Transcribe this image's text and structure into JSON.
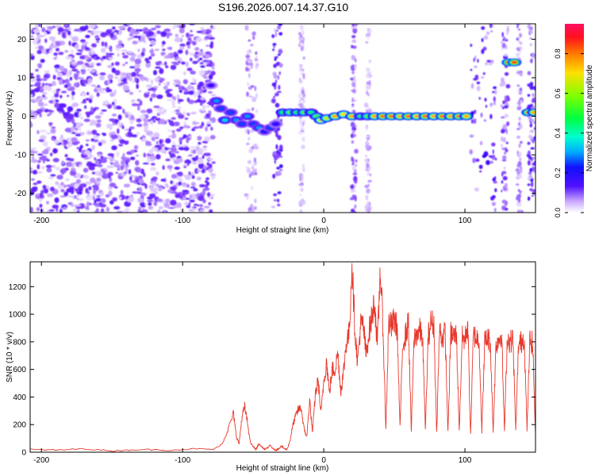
{
  "title": "S196.2026.007.14.37.G10",
  "chart_data": [
    {
      "type": "heatmap",
      "xlabel": "Height of straight line (km)",
      "ylabel": "Frequency (Hz)",
      "xlim": [
        -208,
        150
      ],
      "ylim": [
        -25,
        24
      ],
      "xticks": [
        -200,
        -100,
        0,
        100
      ],
      "yticks": [
        -20,
        -10,
        0,
        10,
        20
      ],
      "colorbar": {
        "label": "Normalized spectral amplitude",
        "range": [
          0,
          0.95
        ],
        "ticks": [
          "0.0",
          "0.2",
          "0.4",
          "0.6",
          "0.8"
        ],
        "tick_values": [
          0.0,
          0.2,
          0.4,
          0.6,
          0.8
        ]
      },
      "noise_region": {
        "x": [
          -208,
          -78
        ],
        "y": [
          -25,
          24
        ],
        "amplitude": 0.12
      },
      "noise_bands": [
        {
          "x": [
            -55,
            -47
          ],
          "amplitude": 0.08
        },
        {
          "x": [
            -36,
            -30
          ],
          "amplitude": 0.15
        },
        {
          "x": [
            -17,
            -14
          ],
          "amplitude": 0.06
        },
        {
          "x": [
            20,
            23
          ],
          "amplitude": 0.1
        },
        {
          "x": [
            30,
            33
          ],
          "amplitude": 0.06
        },
        {
          "x": [
            104,
            122
          ],
          "amplitude": 0.15
        },
        {
          "x": [
            126,
            131
          ],
          "amplitude": 0.12
        },
        {
          "x": [
            137,
            140
          ],
          "amplitude": 0.08
        },
        {
          "x": [
            145,
            150
          ],
          "amplitude": 0.15
        }
      ],
      "ridge": [
        {
          "x": -80,
          "y": 8,
          "amplitude": 0.2
        },
        {
          "x": -76,
          "y": 4,
          "amplitude": 0.35
        },
        {
          "x": -73,
          "y": 2,
          "amplitude": 0.3
        },
        {
          "x": -70,
          "y": -1,
          "amplitude": 0.4
        },
        {
          "x": -66,
          "y": 1,
          "amplitude": 0.3
        },
        {
          "x": -62,
          "y": -1,
          "amplitude": 0.35
        },
        {
          "x": -58,
          "y": -2,
          "amplitude": 0.3
        },
        {
          "x": -54,
          "y": 0,
          "amplitude": 0.35
        },
        {
          "x": -50,
          "y": -2,
          "amplitude": 0.3
        },
        {
          "x": -46,
          "y": -3,
          "amplitude": 0.35
        },
        {
          "x": -42,
          "y": -4,
          "amplitude": 0.25
        },
        {
          "x": -38,
          "y": -3,
          "amplitude": 0.3
        },
        {
          "x": -34,
          "y": -2,
          "amplitude": 0.25
        },
        {
          "x": -29,
          "y": 1,
          "amplitude": 0.55
        },
        {
          "x": -24,
          "y": 1,
          "amplitude": 0.6
        },
        {
          "x": -19,
          "y": 1,
          "amplitude": 0.55
        },
        {
          "x": -14,
          "y": 1,
          "amplitude": 0.6
        },
        {
          "x": -9,
          "y": 1,
          "amplitude": 0.5
        },
        {
          "x": -5,
          "y": 0,
          "amplitude": 0.6
        },
        {
          "x": -2,
          "y": -1,
          "amplitude": 0.75
        },
        {
          "x": 2,
          "y": -0.5,
          "amplitude": 0.7
        },
        {
          "x": 8,
          "y": 0,
          "amplitude": 0.8
        },
        {
          "x": 14,
          "y": 0.5,
          "amplitude": 0.75
        },
        {
          "x": 20,
          "y": 0,
          "amplitude": 0.8
        },
        {
          "x": 26,
          "y": 0,
          "amplitude": 0.5
        },
        {
          "x": 31,
          "y": 0,
          "amplitude": 0.6
        },
        {
          "x": 36,
          "y": 0,
          "amplitude": 0.8
        },
        {
          "x": 42,
          "y": 0,
          "amplitude": 0.85
        },
        {
          "x": 48,
          "y": 0,
          "amplitude": 0.85
        },
        {
          "x": 54,
          "y": 0,
          "amplitude": 0.8
        },
        {
          "x": 60,
          "y": 0,
          "amplitude": 0.85
        },
        {
          "x": 66,
          "y": 0,
          "amplitude": 0.8
        },
        {
          "x": 72,
          "y": 0,
          "amplitude": 0.85
        },
        {
          "x": 78,
          "y": 0,
          "amplitude": 0.8
        },
        {
          "x": 84,
          "y": 0,
          "amplitude": 0.85
        },
        {
          "x": 90,
          "y": 0,
          "amplitude": 0.8
        },
        {
          "x": 96,
          "y": 0,
          "amplitude": 0.85
        },
        {
          "x": 101,
          "y": 0,
          "amplitude": 0.8
        },
        {
          "x": 131,
          "y": 14,
          "amplitude": 0.9
        },
        {
          "x": 135,
          "y": 14,
          "amplitude": 0.9
        },
        {
          "x": 145,
          "y": 1,
          "amplitude": 0.85
        },
        {
          "x": 149,
          "y": 1,
          "amplitude": 0.8
        }
      ]
    },
    {
      "type": "line",
      "xlabel": "Height of straight line (km)",
      "ylabel": "SNR (10 * v/v)",
      "xlim": [
        -208,
        150
      ],
      "ylim": [
        0,
        1380
      ],
      "xticks": [
        -200,
        -100,
        0,
        100
      ],
      "yticks": [
        0,
        200,
        400,
        600,
        800,
        1000,
        1200
      ],
      "color": "#e8382c",
      "series": [
        {
          "name": "SNR",
          "x": [
            -208,
            -190,
            -170,
            -150,
            -130,
            -110,
            -90,
            -78,
            -72,
            -68,
            -64,
            -62,
            -60,
            -58,
            -56,
            -54,
            -52,
            -50,
            -48,
            -46,
            -44,
            -42,
            -40,
            -38,
            -36,
            -34,
            -32,
            -30,
            -28,
            -26,
            -24,
            -22,
            -20,
            -18,
            -16,
            -14,
            -12,
            -10,
            -8,
            -6,
            -4,
            -2,
            0,
            2,
            4,
            6,
            8,
            10,
            12,
            14,
            16,
            18,
            20,
            22,
            24,
            26,
            28,
            30,
            32,
            34,
            36,
            38,
            40,
            42,
            44,
            46,
            48,
            50,
            52,
            54,
            56,
            58,
            60,
            62,
            64,
            66,
            68,
            70,
            72,
            74,
            76,
            78,
            80,
            82,
            84,
            86,
            88,
            90,
            92,
            94,
            96,
            98,
            100,
            102,
            104,
            106,
            108,
            110,
            112,
            114,
            116,
            118,
            120,
            122,
            124,
            126,
            128,
            130,
            132,
            134,
            136,
            138,
            140,
            142,
            144,
            146,
            148,
            150
          ],
          "y": [
            20,
            15,
            25,
            10,
            20,
            15,
            25,
            20,
            60,
            160,
            280,
            120,
            60,
            250,
            330,
            210,
            70,
            40,
            20,
            60,
            40,
            20,
            30,
            50,
            25,
            15,
            25,
            45,
            25,
            20,
            80,
            190,
            260,
            310,
            320,
            170,
            110,
            380,
            140,
            420,
            520,
            280,
            510,
            660,
            430,
            600,
            600,
            720,
            440,
            580,
            800,
            860,
            1380,
            900,
            650,
            920,
            920,
            700,
            870,
            970,
            1100,
            760,
            1330,
            900,
            160,
            940,
            910,
            960,
            900,
            180,
            800,
            850,
            940,
            150,
            820,
            860,
            880,
            830,
            160,
            830,
            950,
            920,
            140,
            890,
            820,
            870,
            140,
            860,
            840,
            850,
            150,
            830,
            810,
            940,
            120,
            850,
            830,
            820,
            140,
            800,
            830,
            800,
            140,
            780,
            820,
            860,
            150,
            830,
            800,
            820,
            150,
            780,
            800,
            840,
            160,
            810,
            790,
            120
          ]
        }
      ]
    }
  ]
}
